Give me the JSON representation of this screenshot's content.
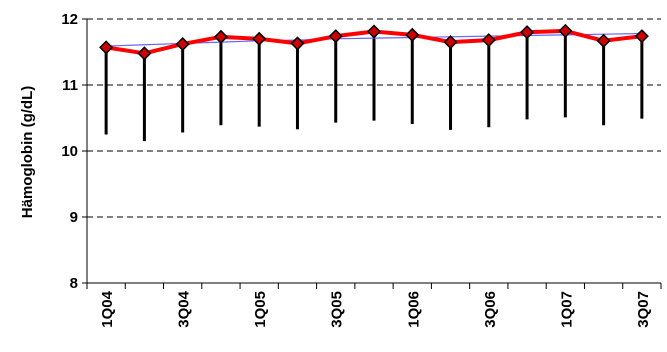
{
  "chart_data": {
    "type": "line",
    "title": "",
    "xlabel": "",
    "ylabel": "Hämoglobin (g/dL)",
    "ylim": [
      8,
      12
    ],
    "yticks": [
      8,
      9,
      10,
      11,
      12
    ],
    "grid": "dashed horizontal",
    "legend": "none",
    "categories": [
      "1Q04",
      "2Q04",
      "3Q04",
      "4Q04",
      "1Q05",
      "2Q05",
      "3Q05",
      "4Q05",
      "1Q06",
      "2Q06",
      "3Q06",
      "4Q06",
      "1Q07",
      "2Q07",
      "3Q07"
    ],
    "x_tick_labels": [
      "1Q04",
      "3Q04",
      "1Q05",
      "3Q05",
      "1Q06",
      "3Q06",
      "1Q07",
      "3Q07"
    ],
    "series": [
      {
        "values": [
          11.57,
          11.48,
          11.62,
          11.73,
          11.7,
          11.63,
          11.74,
          11.81,
          11.76,
          11.65,
          11.68,
          11.8,
          11.82,
          11.67,
          11.74
        ],
        "color": "#ff0000",
        "marker": "diamond",
        "marker_color": "#cc0000"
      },
      {
        "values": [
          11.59,
          11.61,
          11.63,
          11.65,
          11.67,
          11.68,
          11.7,
          11.71,
          11.72,
          11.73,
          11.74,
          11.75,
          11.76,
          11.77,
          11.78
        ],
        "color": "#6666ff",
        "style": "trend"
      }
    ],
    "error_lower": [
      10.25,
      10.15,
      10.28,
      10.39,
      10.37,
      10.33,
      10.43,
      10.46,
      10.41,
      10.32,
      10.36,
      10.48,
      10.51,
      10.39,
      10.49
    ],
    "colors": {
      "main_line": "#ff0000",
      "marker_fill": "#cc0000",
      "trend_line": "#6666ff",
      "error_bar": "#000000",
      "grid": "#000000"
    }
  }
}
